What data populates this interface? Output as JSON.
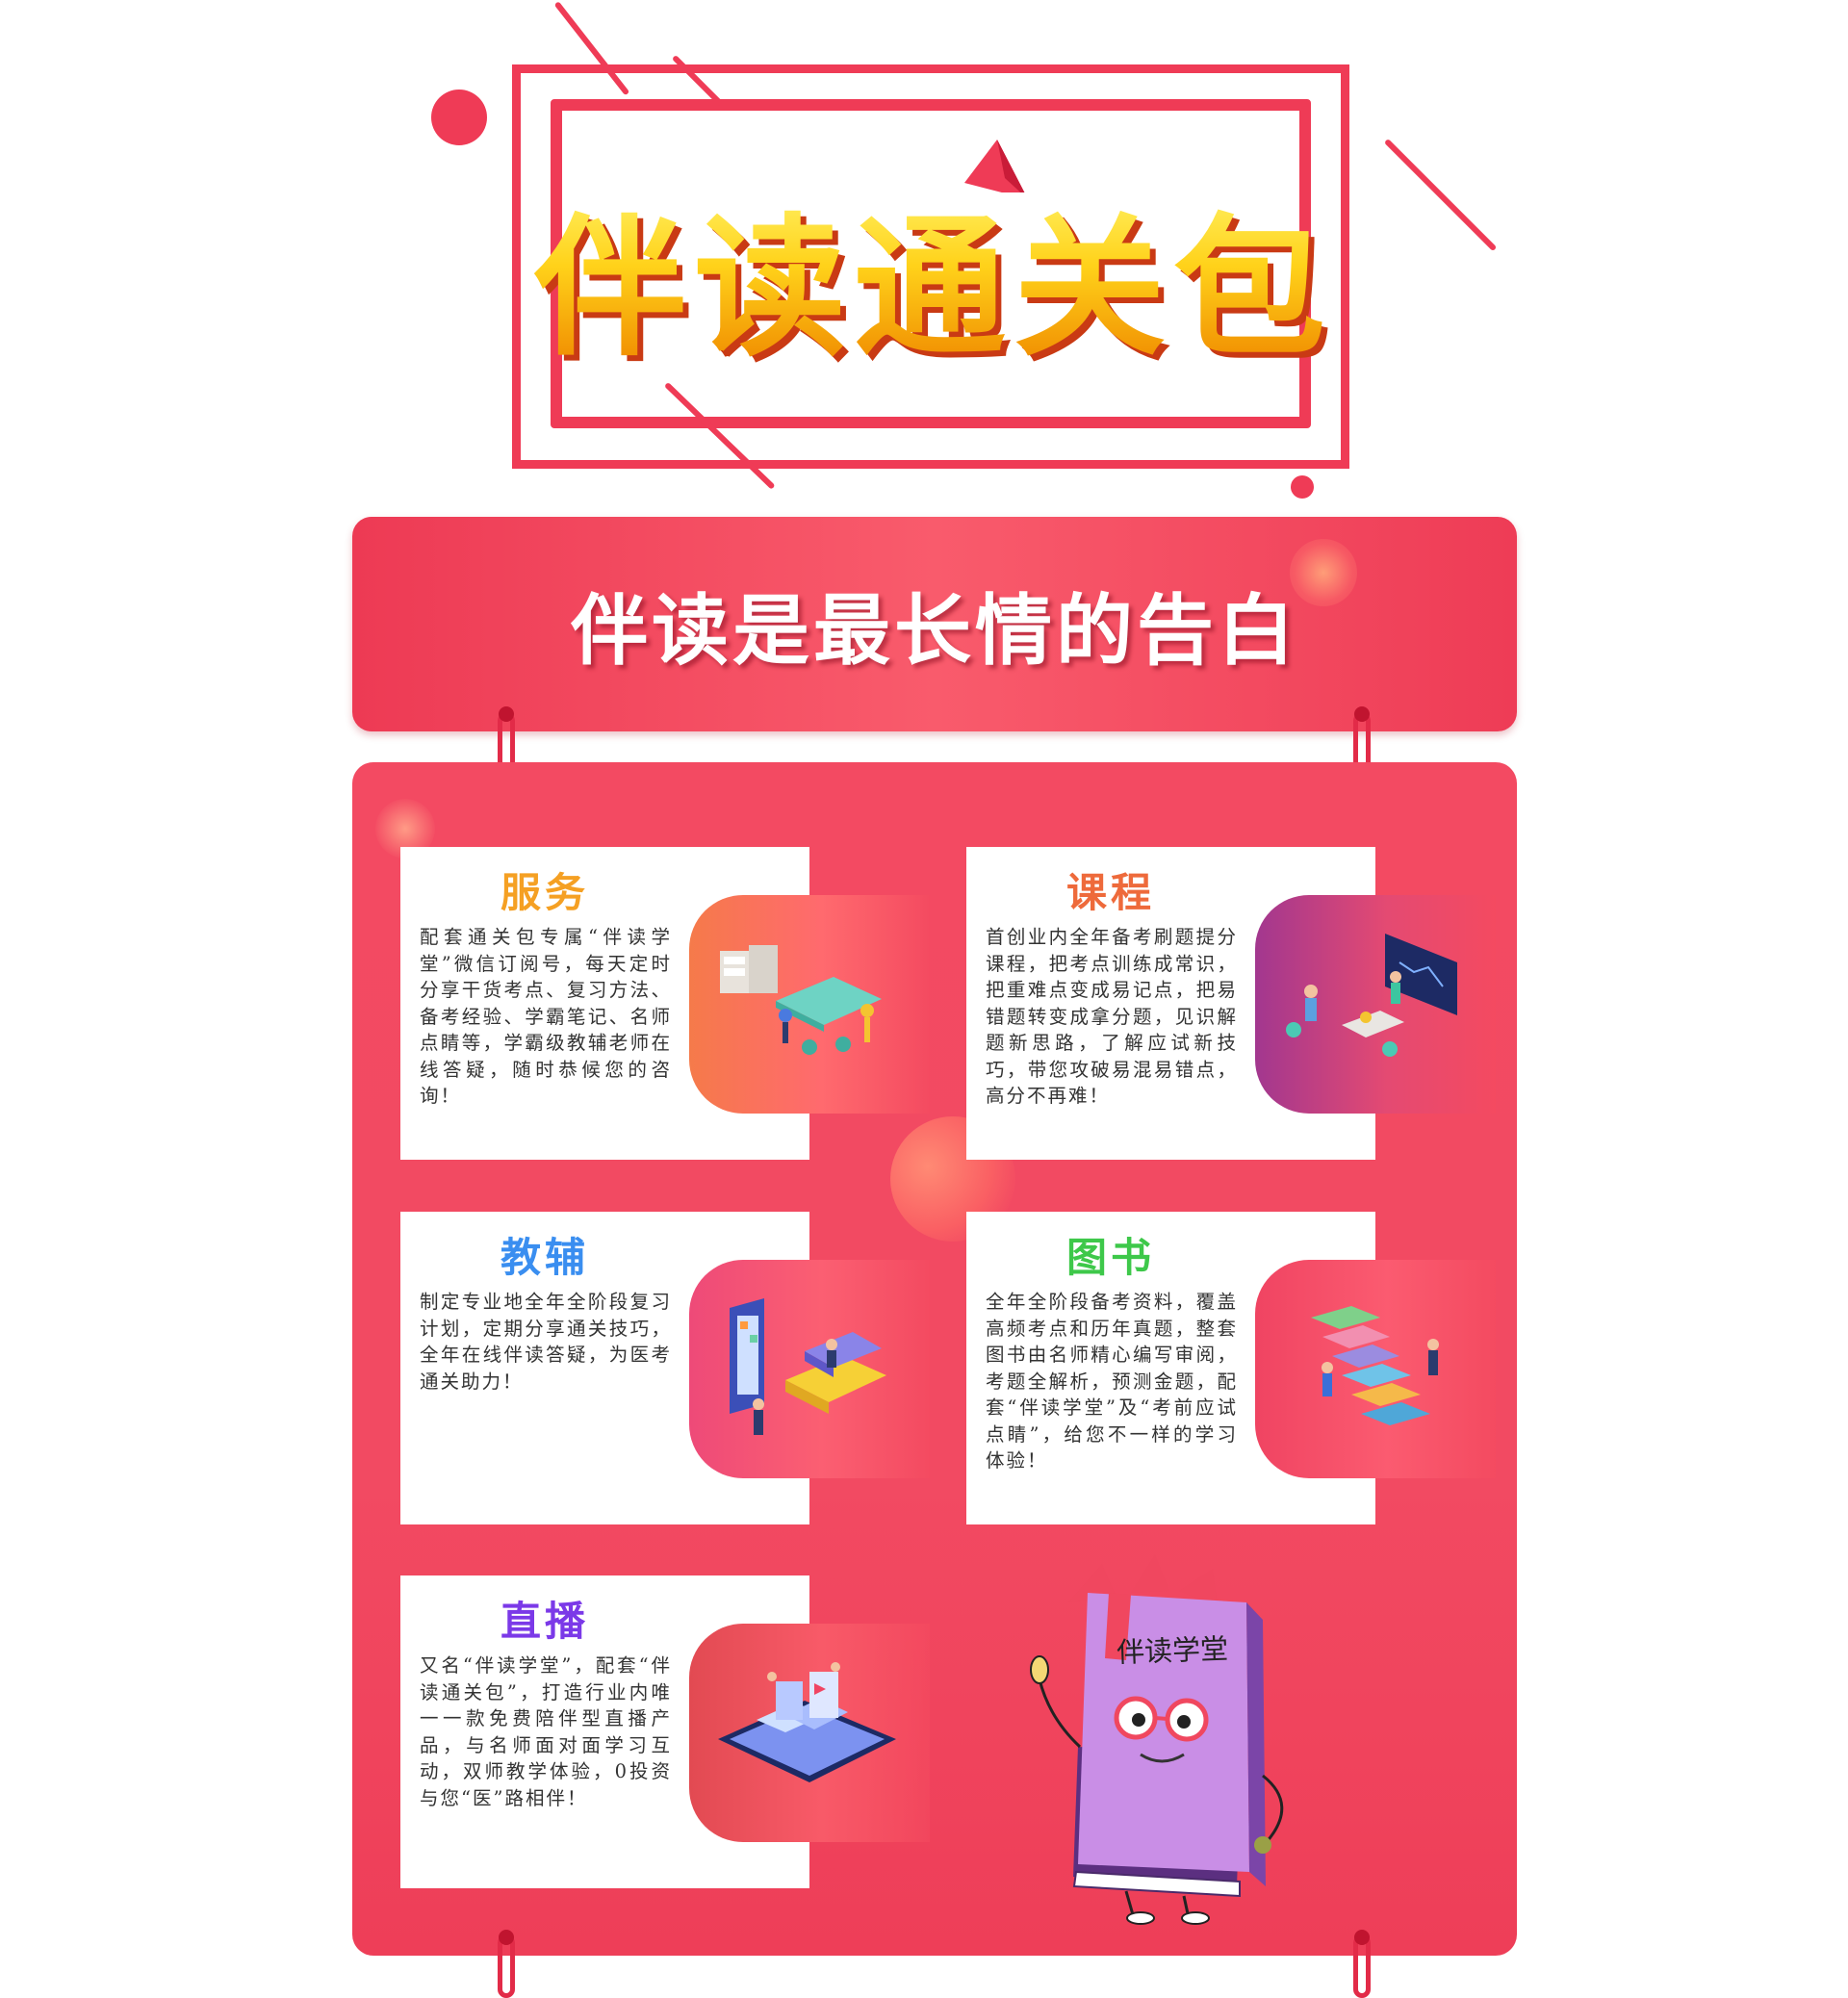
{
  "header": {
    "title": "伴读通关包"
  },
  "banner": {
    "title": "伴读是最长情的告白"
  },
  "cards": [
    {
      "title": "服务",
      "color": "#f5a023",
      "body": "配套通关包专属“伴读学堂”微信订阅号，每天定时分享干货考点、复习方法、备考经验、学霸笔记、名师点睛等，学霸级教辅老师在线答疑，随时恭候您的咨询！"
    },
    {
      "title": "课程",
      "color": "#ee6a3b",
      "body": "首创业内全年备考刷题提分课程，把考点训练成常识，把重难点变成易记点，把易错题转变成拿分题，见识解题新思路，了解应试新技巧，带您攻破易混易错点，高分不再难！"
    },
    {
      "title": "教辅",
      "color": "#3a8ef0",
      "body": "制定专业地全年全阶段复习计划，定期分享通关技巧，全年在线伴读答疑，为医考通关助力！"
    },
    {
      "title": "图书",
      "color": "#3ec84a",
      "body": "全年全阶段备考资料，覆盖高频考点和历年真题，整套图书由名师精心编写审阅，考题全解析，预测金题，配套“伴读学堂”及“考前应试点睛”，给您不一样的学习体验！"
    },
    {
      "title": "直播",
      "color": "#7b39e8",
      "body": "又名“伴读学堂”，配套“伴读通关包”，打造行业内唯一一款免费陪伴型直播产品，与名师面对面学习互动，双师教学体验，0投资与您“医”路相伴！"
    }
  ],
  "mascot": {
    "book_label": "伴读学堂"
  },
  "colors": {
    "accent_red": "#ef3b56",
    "title_yellow": "#ffd21a",
    "board": "#f34a62"
  }
}
